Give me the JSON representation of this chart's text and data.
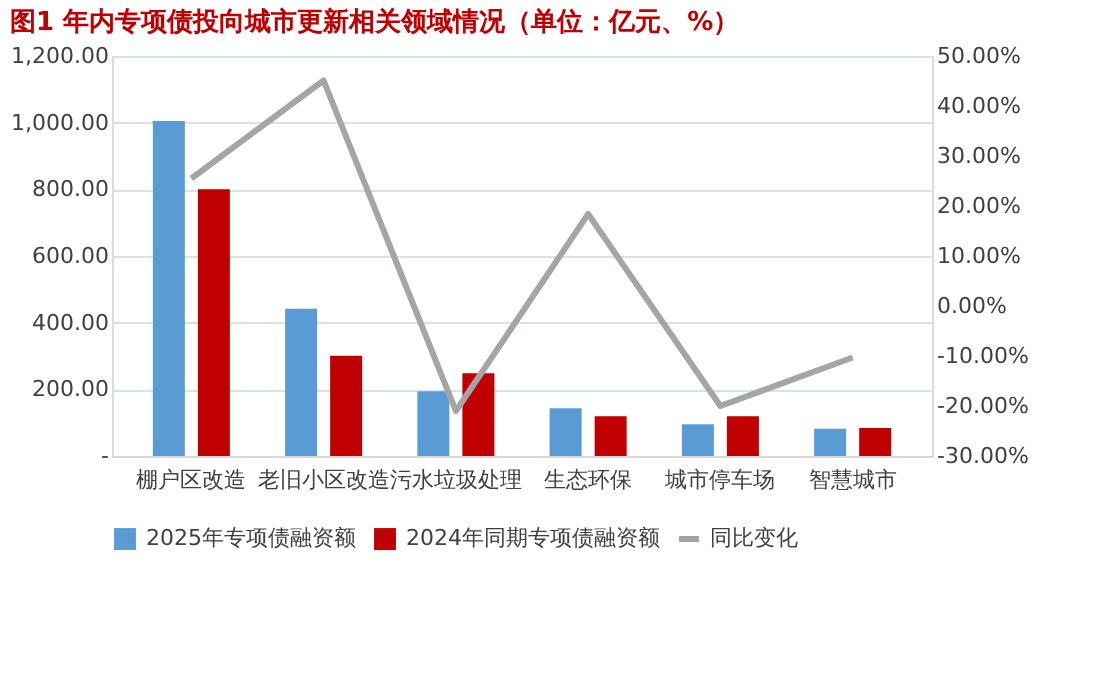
{
  "chart_data": {
    "type": "bar",
    "title": "图1 年内专项债投向城市更新相关领域情况（单位：亿元、%）",
    "categories": [
      "棚户区改造",
      "老旧小区改造",
      "污水垃圾处理",
      "生态环保",
      "城市停车场",
      "智慧城市"
    ],
    "series": [
      {
        "name": "2025年专项债融资额",
        "color": "#5b9bd5",
        "values": [
          1005,
          442,
          194,
          143,
          95,
          82
        ]
      },
      {
        "name": "2024年同期专项债融资额",
        "color": "#c00000",
        "values": [
          800,
          301,
          248,
          119,
          119,
          84
        ]
      },
      {
        "name": "同比变化",
        "type": "line",
        "axis": "y2",
        "color": "#a5a5a5",
        "values": [
          25.5,
          45.1,
          -21,
          18.4,
          -20,
          -10.3
        ]
      }
    ],
    "ylim": [
      0,
      1200
    ],
    "yticks": [
      {
        "value": 0,
        "label": "-"
      },
      {
        "value": 200,
        "label": "200.00"
      },
      {
        "value": 400,
        "label": "400.00"
      },
      {
        "value": 600,
        "label": "600.00"
      },
      {
        "value": 800,
        "label": "800.00"
      },
      {
        "value": 1000,
        "label": "1,000.00"
      },
      {
        "value": 1200,
        "label": "1,200.00"
      }
    ],
    "y2lim": [
      -30,
      50
    ],
    "y2ticks": [
      {
        "value": -30,
        "label": "-30.00%"
      },
      {
        "value": -20,
        "label": "-20.00%"
      },
      {
        "value": -10,
        "label": "-10.00%"
      },
      {
        "value": 0,
        "label": "0.00%"
      },
      {
        "value": 10,
        "label": "10.00%"
      },
      {
        "value": 20,
        "label": "20.00%"
      },
      {
        "value": 30,
        "label": "30.00%"
      },
      {
        "value": 40,
        "label": "40.00%"
      },
      {
        "value": 50,
        "label": "50.00%"
      }
    ],
    "grid": "y",
    "legend": "bottom",
    "marker": "none",
    "line_style": "solid"
  }
}
